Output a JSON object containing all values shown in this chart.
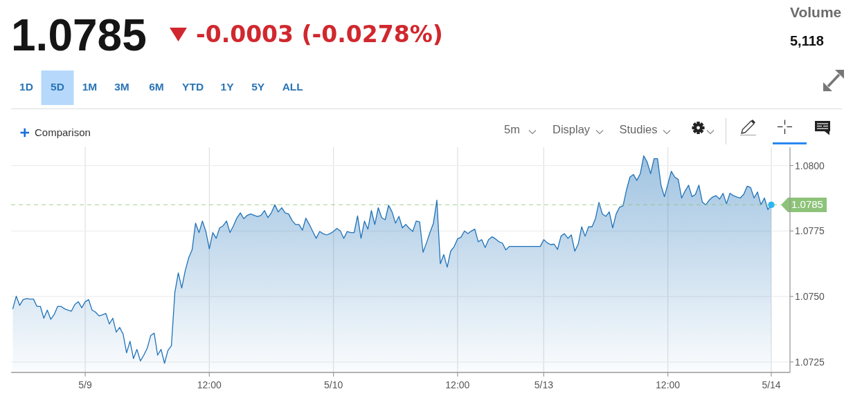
{
  "chart_data": {
    "type": "area",
    "title": "1.0785",
    "subtitle": "-0.0003 (-0.0278%)",
    "annotations": [
      "Volume",
      "5,118",
      "1D",
      "5D",
      "1M",
      "3M",
      "6M",
      "YTD",
      "1Y",
      "5Y",
      "ALL",
      "Comparison",
      "5m",
      "Display",
      "Studies"
    ],
    "categories": [
      null,
      null,
      null,
      null,
      null,
      null,
      null,
      null,
      null,
      null,
      null,
      null,
      null,
      null,
      null,
      null,
      null,
      null,
      null,
      null,
      null,
      "5/9",
      null,
      null,
      null,
      null,
      null,
      null,
      null,
      null,
      null,
      null,
      null,
      null,
      null,
      null,
      null,
      null,
      null,
      null,
      null,
      null,
      null,
      null,
      null,
      null,
      null,
      null,
      null,
      null,
      null,
      null,
      null,
      null,
      null,
      null,
      null,
      "12:00",
      null,
      null,
      null,
      null,
      null,
      null,
      null,
      null,
      null,
      null,
      null,
      null,
      null,
      null,
      null,
      null,
      null,
      null,
      null,
      null,
      null,
      null,
      null,
      null,
      null,
      null,
      null,
      null,
      null,
      null,
      null,
      null,
      null,
      null,
      null,
      "5/10",
      null,
      null,
      null,
      null,
      null,
      null,
      null,
      null,
      null,
      null,
      null,
      null,
      null,
      null,
      null,
      null,
      null,
      null,
      null,
      null,
      null,
      null,
      null,
      null,
      null,
      null,
      null,
      null,
      null,
      null,
      null,
      null,
      null,
      null,
      null,
      "12:00",
      null,
      null,
      null,
      null,
      null,
      null,
      null,
      null,
      null,
      null,
      null,
      null,
      null,
      null,
      null,
      null,
      null,
      null,
      null,
      null,
      null,
      null,
      null,
      null,
      "5/13",
      null,
      null,
      null,
      null,
      null,
      null,
      null,
      null,
      null,
      null,
      null,
      null,
      null,
      null,
      null,
      null,
      null,
      null,
      null,
      null,
      null,
      null,
      null,
      null,
      null,
      null,
      null,
      null,
      null,
      null,
      null,
      null,
      null,
      null,
      null,
      "12:00",
      null,
      null,
      null,
      null,
      null,
      null,
      null,
      null,
      null,
      null,
      null,
      null,
      null,
      null,
      null,
      null,
      null,
      null,
      null,
      null,
      null,
      null,
      null,
      null,
      null,
      null,
      null,
      null,
      null,
      "5/14"
    ],
    "ylim": [
      1.0721,
      1.0807
    ],
    "yticks": [
      {
        "value": 1.0725,
        "label": "1.0725"
      },
      {
        "value": 1.075,
        "label": "1.0750"
      },
      {
        "value": 1.0775,
        "label": "1.0775"
      },
      {
        "value": 1.08,
        "label": "1.0800"
      }
    ],
    "grid": true,
    "series": [
      {
        "type": "area",
        "color": "#1f72b8",
        "values": [
          1.07453,
          1.07501,
          1.07466,
          1.07488,
          1.07492,
          1.0749,
          1.0749,
          1.07462,
          1.07462,
          1.07417,
          1.07448,
          1.07413,
          1.07431,
          1.07462,
          1.07462,
          1.07453,
          1.07448,
          1.07444,
          1.0747,
          1.0748,
          1.07457,
          1.0748,
          1.07488,
          1.07448,
          1.0744,
          1.07426,
          1.0743,
          1.07435,
          1.07395,
          1.07417,
          1.07364,
          1.07382,
          1.07356,
          1.07285,
          1.07329,
          1.07263,
          1.07298,
          1.07254,
          1.07276,
          1.07303,
          1.07351,
          1.0736,
          1.07276,
          1.07298,
          1.07245,
          1.07294,
          1.07312,
          1.07515,
          1.0759,
          1.07532,
          1.07598,
          1.07647,
          1.07678,
          1.0778,
          1.07744,
          1.07788,
          1.07748,
          1.07682,
          1.07744,
          1.07722,
          1.07762,
          1.0777,
          1.07788,
          1.07744,
          1.0777,
          1.078,
          1.07819,
          1.07797,
          1.0781,
          1.07815,
          1.0781,
          1.07805,
          1.0781,
          1.07828,
          1.07801,
          1.0782,
          1.0785,
          1.07823,
          1.07839,
          1.07819,
          1.07815,
          1.0779,
          1.07775,
          1.07775,
          1.07753,
          1.07799,
          1.07775,
          1.07748,
          1.07722,
          1.07748,
          1.0774,
          1.07735,
          1.0774,
          1.07748,
          1.0776,
          1.0775,
          1.07722,
          1.07748,
          1.07744,
          1.07744,
          1.07808,
          1.07722,
          1.07788,
          1.07757,
          1.07828,
          1.07775,
          1.07839,
          1.07801,
          1.07793,
          1.07848,
          1.07823,
          1.0778,
          1.07806,
          1.07762,
          1.07775,
          1.0776,
          1.07748,
          1.07788,
          1.07785,
          1.07669,
          1.07705,
          1.07744,
          1.0778,
          1.07868,
          1.07625,
          1.0766,
          1.07612,
          1.07673,
          1.0769,
          1.0772,
          1.07726,
          1.0775,
          1.0774,
          1.0775,
          1.07757,
          1.07709,
          1.07717,
          1.07687,
          1.07717,
          1.07728,
          1.0772,
          1.07709,
          1.07704,
          1.07678,
          1.07691,
          1.07691,
          1.07691,
          1.07691,
          1.07691,
          1.07691,
          1.07691,
          1.07691,
          1.07691,
          1.07691,
          1.07717,
          1.07705,
          1.07698,
          1.077,
          1.0768,
          1.0773,
          1.0774,
          1.07722,
          1.07735,
          1.07673,
          1.077,
          1.07766,
          1.0773,
          1.07766,
          1.07766,
          1.07797,
          1.07859,
          1.07815,
          1.07806,
          1.07823,
          1.07762,
          1.07815,
          1.07841,
          1.07846,
          1.07907,
          1.07956,
          1.07966,
          1.07943,
          1.07969,
          1.08037,
          1.08013,
          1.07969,
          1.08026,
          1.08026,
          1.07925,
          1.07881,
          1.07929,
          1.07978,
          1.07956,
          1.07947,
          1.07876,
          1.07903,
          1.07925,
          1.07881,
          1.0789,
          1.07925,
          1.0786,
          1.0785,
          1.07868,
          1.0788,
          1.07885,
          1.07872,
          1.07894,
          1.07854,
          1.07894,
          1.07885,
          1.0788,
          1.07876,
          1.0789,
          1.07921,
          1.07916,
          1.07876,
          1.07899,
          1.0785,
          1.07876,
          1.07832,
          1.0785
        ]
      },
      {
        "type": "scatter",
        "color": "#29b6f6",
        "marker": "circle",
        "values": [
          null,
          null,
          null,
          null,
          null,
          null,
          null,
          null,
          null,
          null,
          null,
          null,
          null,
          null,
          null,
          null,
          null,
          null,
          null,
          null,
          null,
          null,
          null,
          null,
          null,
          null,
          null,
          null,
          null,
          null,
          null,
          null,
          null,
          null,
          null,
          null,
          null,
          null,
          null,
          null,
          null,
          null,
          null,
          null,
          null,
          null,
          null,
          null,
          null,
          null,
          null,
          null,
          null,
          null,
          null,
          null,
          null,
          null,
          null,
          null,
          null,
          null,
          null,
          null,
          null,
          null,
          null,
          null,
          null,
          null,
          null,
          null,
          null,
          null,
          null,
          null,
          null,
          null,
          null,
          null,
          null,
          null,
          null,
          null,
          null,
          null,
          null,
          null,
          null,
          null,
          null,
          null,
          null,
          null,
          null,
          null,
          null,
          null,
          null,
          null,
          null,
          null,
          null,
          null,
          null,
          null,
          null,
          null,
          null,
          null,
          null,
          null,
          null,
          null,
          null,
          null,
          null,
          null,
          null,
          null,
          null,
          null,
          null,
          null,
          null,
          null,
          null,
          null,
          null,
          null,
          null,
          null,
          null,
          null,
          null,
          null,
          null,
          null,
          null,
          null,
          null,
          null,
          null,
          null,
          null,
          null,
          null,
          null,
          null,
          null,
          null,
          null,
          null,
          null,
          null,
          null,
          null,
          null,
          null,
          null,
          null,
          null,
          null,
          null,
          null,
          null,
          null,
          null,
          null,
          null,
          null,
          null,
          null,
          null,
          null,
          null,
          null,
          null,
          null,
          null,
          null,
          null,
          null,
          null,
          null,
          null,
          null,
          null,
          null,
          null,
          null,
          null,
          null,
          null,
          null,
          null,
          null,
          null,
          null,
          null,
          null,
          null,
          null,
          null,
          null,
          null,
          null,
          null,
          null,
          null,
          null,
          null,
          null,
          null,
          null,
          null,
          null,
          null,
          null,
          null,
          1.0785
        ]
      }
    ],
    "ref_lines": [
      {
        "axis": "y",
        "value": 1.0785,
        "label": "1.0785",
        "color": "#8dc379",
        "line_style": "dashed"
      }
    ]
  }
}
